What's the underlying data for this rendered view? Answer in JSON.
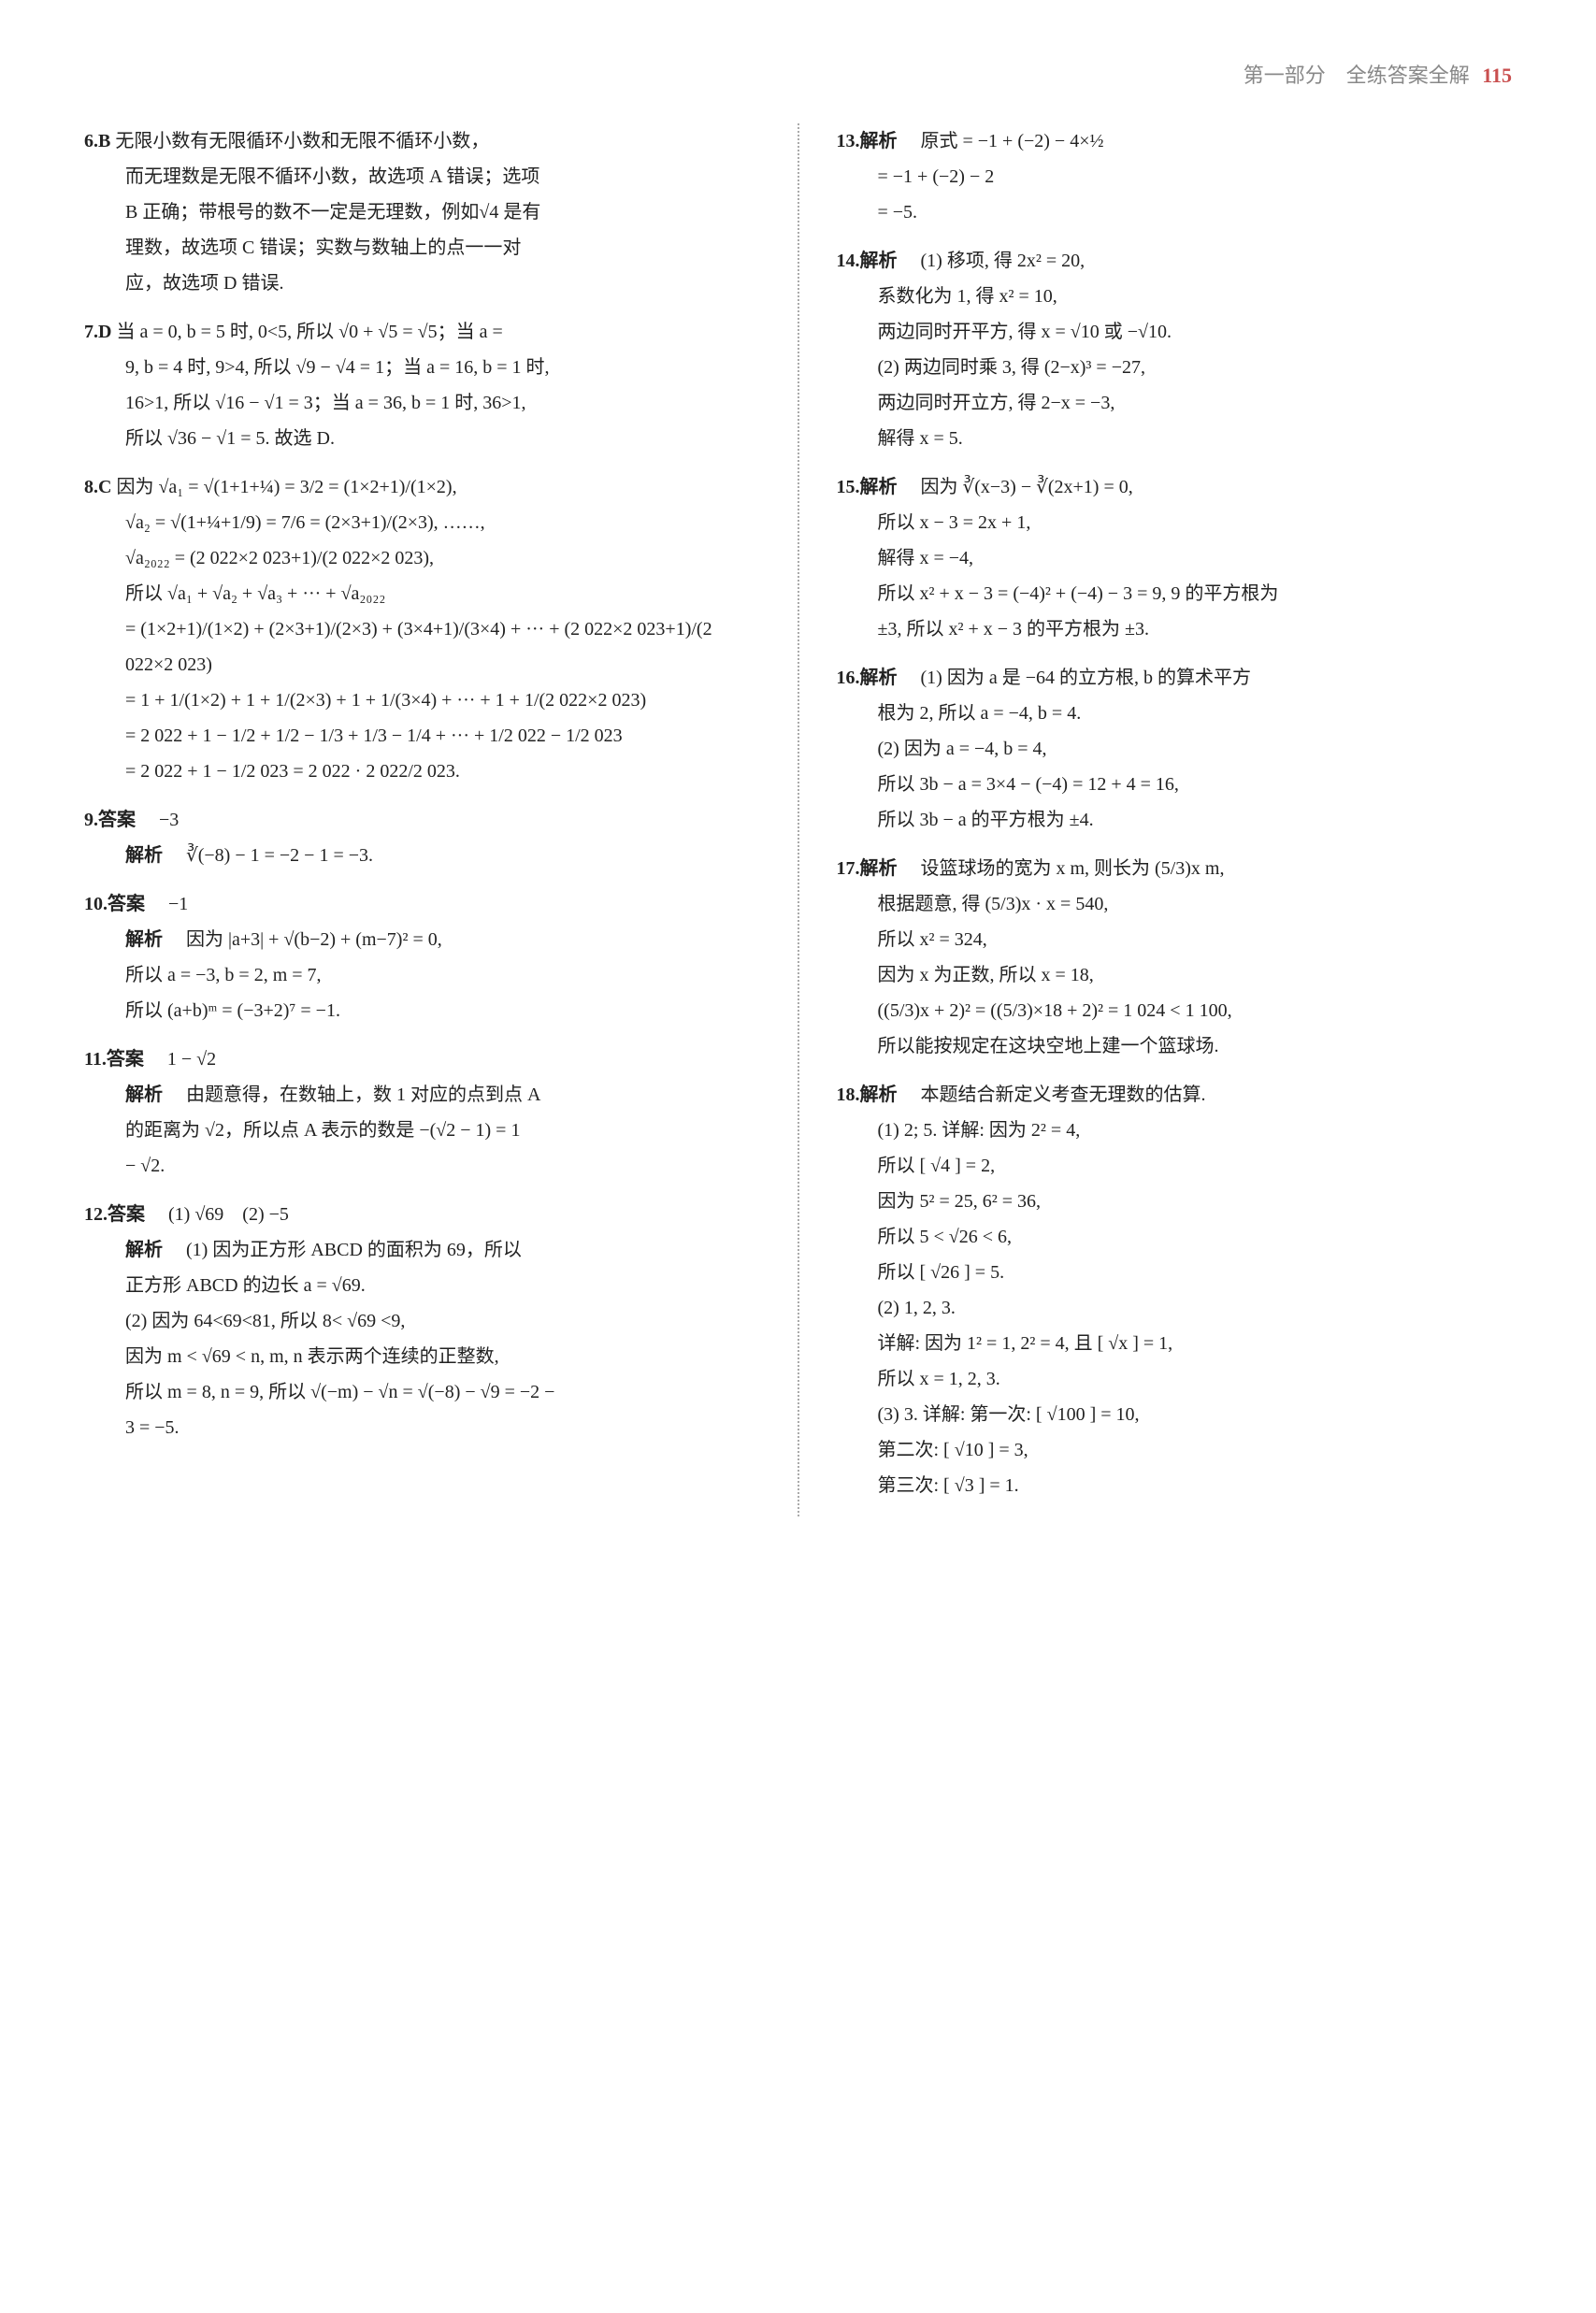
{
  "header": {
    "section": "第一部分　全练答案全解",
    "page": "115"
  },
  "left": {
    "q6": {
      "num": "6.B",
      "l1": "无限小数有无限循环小数和无限不循环小数，",
      "l2": "而无理数是无限不循环小数，故选项 A 错误；选项",
      "l3": "B 正确；带根号的数不一定是无理数，例如√4 是有",
      "l4": "理数，故选项 C 错误；实数与数轴上的点一一对",
      "l5": "应，故选项 D 错误."
    },
    "q7": {
      "num": "7.D",
      "l1": "当 a = 0, b = 5 时, 0<5, 所以 √0 + √5 = √5；当 a =",
      "l2": "9, b = 4 时, 9>4, 所以 √9 − √4 = 1；当 a = 16, b = 1 时,",
      "l3": "16>1, 所以 √16 − √1 = 3；当 a = 36, b = 1 时, 36>1,",
      "l4": "所以 √36 − √1 = 5. 故选 D."
    },
    "q8": {
      "num": "8.C",
      "l1": "因为 √a₁ = √(1+1+¼) = 3/2 = (1×2+1)/(1×2),",
      "l2": "√a₂ = √(1+¼+1/9) = 7/6 = (2×3+1)/(2×3), ……,",
      "l3": "√a₂₀₂₂ = (2 022×2 023+1)/(2 022×2 023),",
      "l4": "所以 √a₁ + √a₂ + √a₃ + ··· + √a₂₀₂₂",
      "l5": "= (1×2+1)/(1×2) + (2×3+1)/(2×3) + (3×4+1)/(3×4) + ··· + (2 022×2 023+1)/(2 022×2 023)",
      "l6": "= 1 + 1/(1×2) + 1 + 1/(2×3) + 1 + 1/(3×4) + ··· + 1 + 1/(2 022×2 023)",
      "l7": "= 2 022 + 1 − 1/2 + 1/2 − 1/3 + 1/3 − 1/4 + ··· + 1/2 022 − 1/2 023",
      "l8": "= 2 022 + 1 − 1/2 023 = 2 022 · 2 022/2 023."
    },
    "q9": {
      "num": "9.答案",
      "ans": "−3",
      "jxlabel": "解析",
      "jx": "∛(−8) − 1 = −2 − 1 = −3."
    },
    "q10": {
      "num": "10.答案",
      "ans": "−1",
      "jxlabel": "解析",
      "jx1": "因为 |a+3| + √(b−2) + (m−7)² = 0,",
      "jx2": "所以 a = −3, b = 2, m = 7,",
      "jx3": "所以 (a+b)ᵐ = (−3+2)⁷ = −1."
    },
    "q11": {
      "num": "11.答案",
      "ans": "1 − √2",
      "jxlabel": "解析",
      "jx1": "由题意得，在数轴上，数 1 对应的点到点 A",
      "jx2": "的距离为 √2，所以点 A 表示的数是 −(√2 − 1) = 1",
      "jx3": "− √2."
    },
    "q12": {
      "num": "12.答案",
      "ans": "(1) √69　(2) −5",
      "jxlabel": "解析",
      "jx1": "(1) 因为正方形 ABCD 的面积为 69，所以",
      "jx2": "正方形 ABCD 的边长 a = √69.",
      "jx3": "(2) 因为 64<69<81, 所以 8< √69 <9,",
      "jx4": "因为 m < √69 < n, m, n 表示两个连续的正整数,",
      "jx5": "所以 m = 8, n = 9, 所以 √(−m) − √n = √(−8) − √9 = −2 −",
      "jx6": "3 = −5."
    }
  },
  "right": {
    "q13": {
      "num": "13.解析",
      "l1": "原式 = −1 + (−2) − 4×½",
      "l2": "= −1 + (−2) − 2",
      "l3": "= −5."
    },
    "q14": {
      "num": "14.解析",
      "l1": "(1) 移项, 得 2x² = 20,",
      "l2": "系数化为 1, 得 x² = 10,",
      "l3": "两边同时开平方, 得 x = √10 或 −√10.",
      "l4": "(2) 两边同时乘 3, 得 (2−x)³ = −27,",
      "l5": "两边同时开立方, 得 2−x = −3,",
      "l6": "解得 x = 5."
    },
    "q15": {
      "num": "15.解析",
      "l1": "因为 ∛(x−3) − ∛(2x+1) = 0,",
      "l2": "所以 x − 3 = 2x + 1,",
      "l3": "解得 x = −4,",
      "l4": "所以 x² + x − 3 = (−4)² + (−4) − 3 = 9, 9 的平方根为",
      "l5": "±3, 所以 x² + x − 3 的平方根为 ±3."
    },
    "q16": {
      "num": "16.解析",
      "l1": "(1) 因为 a 是 −64 的立方根, b 的算术平方",
      "l2": "根为 2, 所以 a = −4, b = 4.",
      "l3": "(2) 因为 a = −4, b = 4,",
      "l4": "所以 3b − a = 3×4 − (−4) = 12 + 4 = 16,",
      "l5": "所以 3b − a 的平方根为 ±4."
    },
    "q17": {
      "num": "17.解析",
      "l1": "设篮球场的宽为 x m, 则长为 (5/3)x m,",
      "l2": "根据题意, 得 (5/3)x · x = 540,",
      "l3": "所以 x² = 324,",
      "l4": "因为 x 为正数, 所以 x = 18,",
      "l5": "((5/3)x + 2)² = ((5/3)×18 + 2)² = 1 024 < 1 100,",
      "l6": "所以能按规定在这块空地上建一个篮球场."
    },
    "q18": {
      "num": "18.解析",
      "l1": "本题结合新定义考查无理数的估算.",
      "l2": "(1) 2; 5. 详解: 因为 2² = 4,",
      "l3": "所以 [ √4 ] = 2,",
      "l4": "因为 5² = 25, 6² = 36,",
      "l5": "所以 5 < √26 < 6,",
      "l6": "所以 [ √26 ] = 5.",
      "l7": "(2) 1, 2, 3.",
      "l8": "详解: 因为 1² = 1, 2² = 4, 且 [ √x ] = 1,",
      "l9": "所以 x = 1, 2, 3.",
      "l10": "(3) 3. 详解: 第一次: [ √100 ] = 10,",
      "l11": "第二次: [ √10 ] = 3,",
      "l12": "第三次: [ √3 ] = 1."
    }
  }
}
